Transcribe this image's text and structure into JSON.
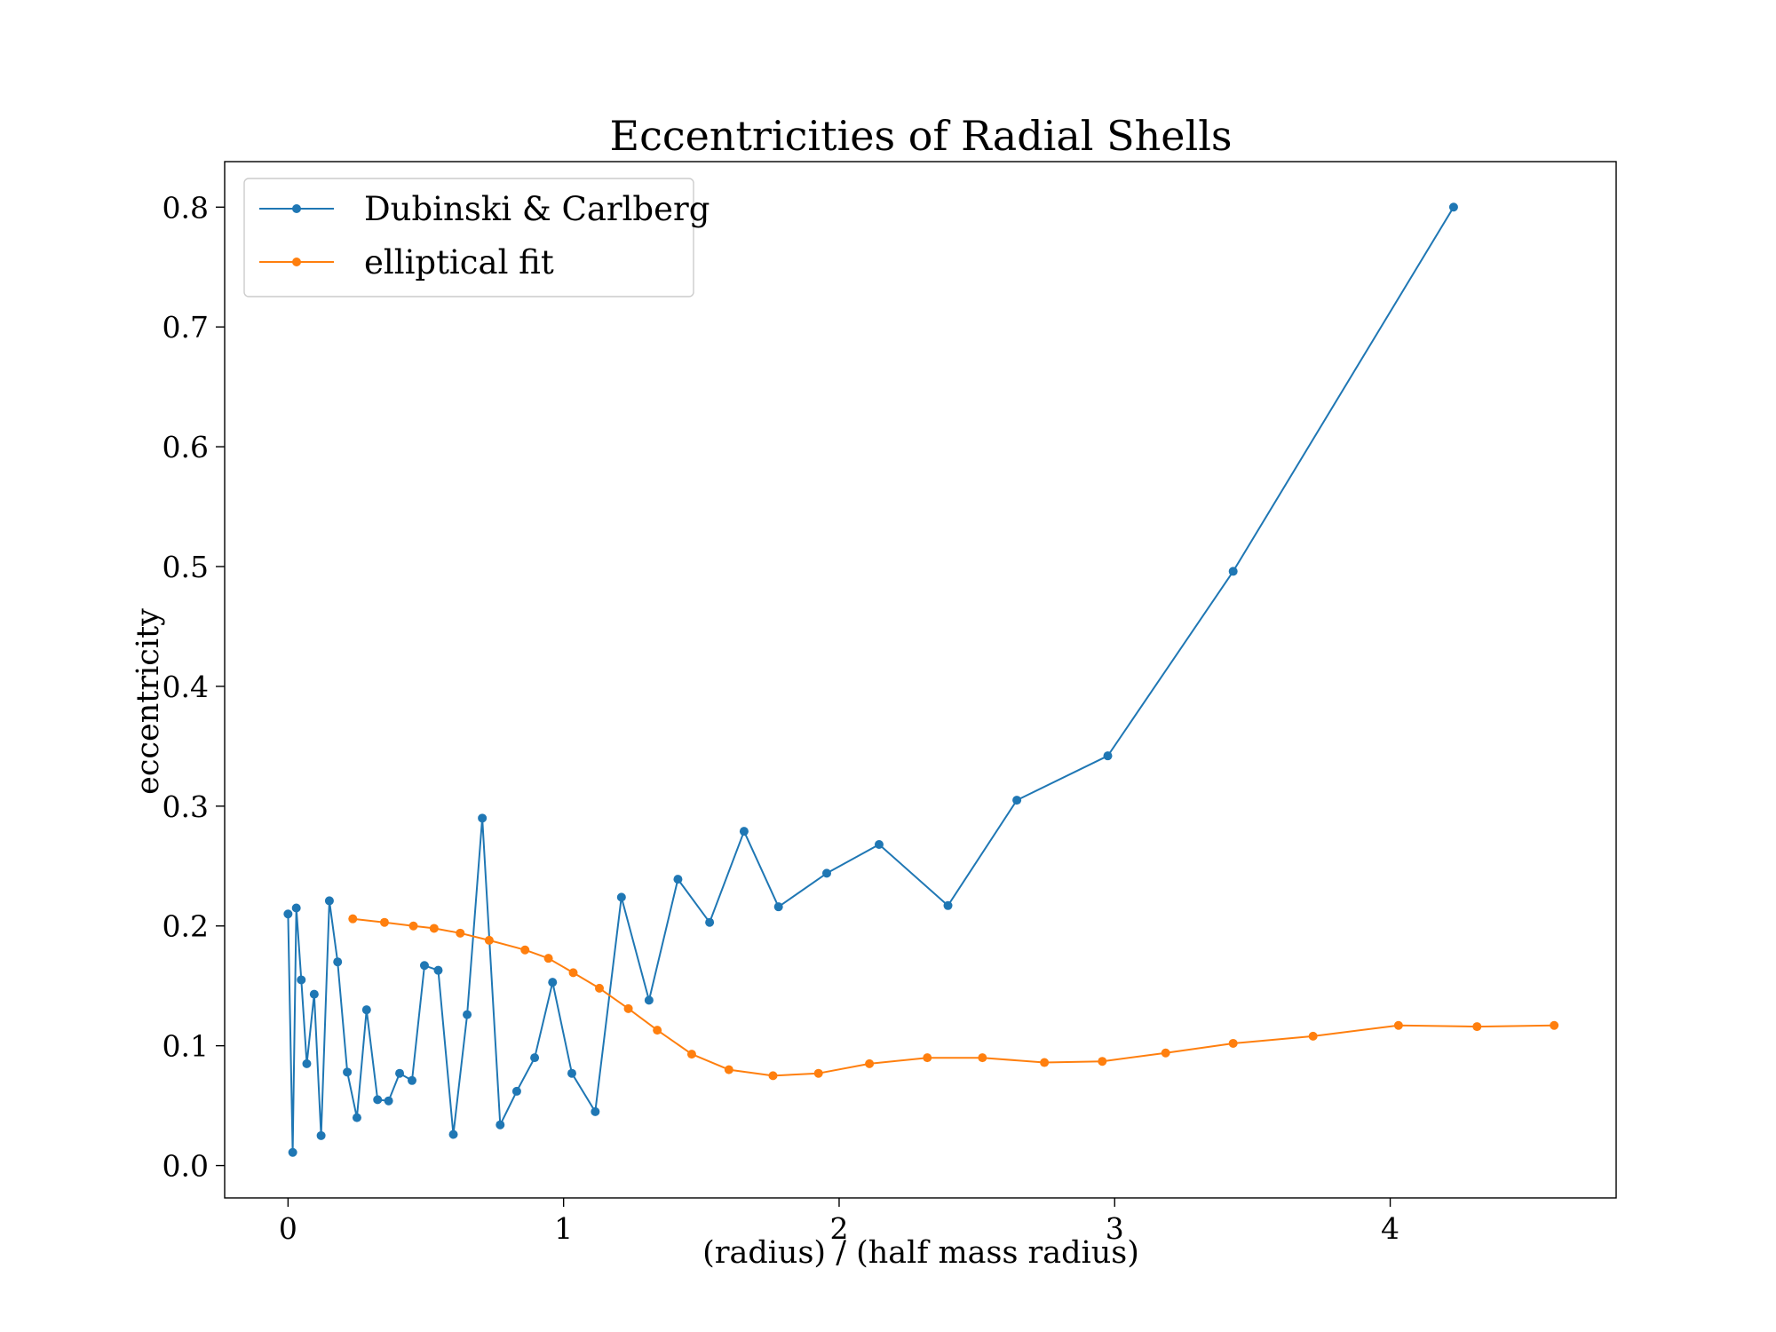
{
  "chart_data": {
    "type": "line",
    "title": "Eccentricities of Radial Shells",
    "xlabel": "(radius) / (half mass radius)",
    "ylabel": "eccentricity",
    "xlim": [
      -0.23,
      4.82
    ],
    "ylim": [
      -0.027,
      0.838
    ],
    "xticks": [
      0,
      1,
      2,
      3,
      4
    ],
    "xtick_labels": [
      "0",
      "1",
      "2",
      "3",
      "4"
    ],
    "yticks": [
      0.0,
      0.1,
      0.2,
      0.3,
      0.4,
      0.5,
      0.6,
      0.7,
      0.8
    ],
    "ytick_labels": [
      "0.0",
      "0.1",
      "0.2",
      "0.3",
      "0.4",
      "0.5",
      "0.6",
      "0.7",
      "0.8"
    ],
    "grid": false,
    "legend_position": "top-left",
    "series": [
      {
        "name": "Dubinski & Carlberg",
        "color": "#1f77b4",
        "marker": "circle",
        "x": [
          0.0,
          0.017,
          0.03,
          0.048,
          0.068,
          0.095,
          0.12,
          0.15,
          0.18,
          0.215,
          0.25,
          0.285,
          0.325,
          0.365,
          0.405,
          0.45,
          0.495,
          0.545,
          0.6,
          0.65,
          0.705,
          0.77,
          0.83,
          0.895,
          0.96,
          1.03,
          1.115,
          1.21,
          1.31,
          1.415,
          1.53,
          1.655,
          1.78,
          1.955,
          2.145,
          2.395,
          2.645,
          2.975,
          3.43,
          4.23
        ],
        "y": [
          0.21,
          0.011,
          0.215,
          0.155,
          0.085,
          0.143,
          0.025,
          0.221,
          0.17,
          0.078,
          0.04,
          0.13,
          0.055,
          0.054,
          0.077,
          0.071,
          0.167,
          0.163,
          0.026,
          0.126,
          0.29,
          0.034,
          0.062,
          0.09,
          0.153,
          0.077,
          0.045,
          0.224,
          0.138,
          0.239,
          0.203,
          0.279,
          0.216,
          0.244,
          0.268,
          0.217,
          0.305,
          0.342,
          0.496,
          0.8
        ]
      },
      {
        "name": "elliptical fit",
        "color": "#ff7f0e",
        "marker": "circle",
        "x": [
          0.235,
          0.35,
          0.455,
          0.53,
          0.625,
          0.73,
          0.86,
          0.945,
          1.035,
          1.13,
          1.235,
          1.34,
          1.465,
          1.6,
          1.76,
          1.925,
          2.11,
          2.32,
          2.52,
          2.745,
          2.955,
          3.185,
          3.43,
          3.72,
          4.03,
          4.315,
          4.595
        ],
        "y": [
          0.206,
          0.203,
          0.2,
          0.198,
          0.194,
          0.188,
          0.18,
          0.173,
          0.161,
          0.148,
          0.131,
          0.113,
          0.093,
          0.08,
          0.075,
          0.077,
          0.085,
          0.09,
          0.09,
          0.086,
          0.087,
          0.094,
          0.102,
          0.108,
          0.117,
          0.116,
          0.117
        ]
      }
    ]
  }
}
